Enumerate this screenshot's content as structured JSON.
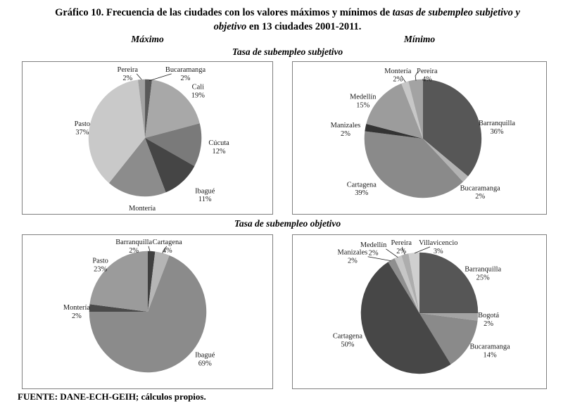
{
  "figure": {
    "title": {
      "line1_regular": "Gráfico 10. Frecuencia de las ciudades con los valores máximos y mínimos de ",
      "line1_italic": "tasas de subempleo subjetivo y",
      "line2_italic": "objetivo",
      "line2_regular": " en 13 ciudades 2001-2011."
    },
    "column_headers": {
      "left": "Máximo",
      "right": "Mínimo"
    },
    "section_titles": {
      "top": "Tasa de subempleo subjetivo",
      "bottom": "Tasa de subempleo objetivo"
    },
    "source": "FUENTE: DANE-ECH-GEIH; cálculos propios."
  },
  "chart_data": [
    {
      "id": "subjetivo-maximo",
      "type": "pie",
      "column": "Máximo",
      "section": "Tasa de subempleo subjetivo",
      "slices": [
        {
          "label": "Bucaramanga",
          "value_pct": 2,
          "color": "#595959"
        },
        {
          "label": "Cali",
          "value_pct": 19,
          "color": "#a8a8a8"
        },
        {
          "label": "Cúcuta",
          "value_pct": 12,
          "color": "#7a7a7a"
        },
        {
          "label": "Ibagué",
          "value_pct": 11,
          "color": "#454545"
        },
        {
          "label": "Montería",
          "value_pct": 17,
          "color": "#8c8c8c"
        },
        {
          "label": "Pasto",
          "value_pct": 37,
          "color": "#c9c9c9"
        },
        {
          "label": "Pereira",
          "value_pct": 2,
          "color": "#a2a2a2"
        }
      ]
    },
    {
      "id": "subjetivo-minimo",
      "type": "pie",
      "column": "Mínimo",
      "section": "Tasa de subempleo subjetivo",
      "slices": [
        {
          "label": "Barranquilla",
          "value_pct": 36,
          "color": "#575757"
        },
        {
          "label": "Bucaramanga",
          "value_pct": 2,
          "color": "#b3b3b3"
        },
        {
          "label": "Cartagena",
          "value_pct": 39,
          "color": "#8a8a8a"
        },
        {
          "label": "Manizales",
          "value_pct": 2,
          "color": "#333333"
        },
        {
          "label": "Medellín",
          "value_pct": 15,
          "color": "#9c9c9c"
        },
        {
          "label": "Montería",
          "value_pct": 2,
          "color": "#c7c7c7"
        },
        {
          "label": "Pereira",
          "value_pct": 4,
          "color": "#a3a3a3"
        }
      ]
    },
    {
      "id": "objetivo-maximo",
      "type": "pie",
      "column": "Máximo",
      "section": "Tasa de subempleo objetivo",
      "slices": [
        {
          "label": "Barranquilla",
          "value_pct": 2,
          "color": "#3f3f3f"
        },
        {
          "label": "Cartagena",
          "value_pct": 4,
          "color": "#b5b5b5"
        },
        {
          "label": "Ibagué",
          "value_pct": 69,
          "color": "#8b8b8b"
        },
        {
          "label": "Montería",
          "value_pct": 2,
          "color": "#4a4a4a"
        },
        {
          "label": "Pasto",
          "value_pct": 23,
          "color": "#9b9b9b"
        }
      ]
    },
    {
      "id": "objetivo-minimo",
      "type": "pie",
      "column": "Mínimo",
      "section": "Tasa de subempleo objetivo",
      "slices": [
        {
          "label": "Barranquilla",
          "value_pct": 25,
          "color": "#565656"
        },
        {
          "label": "Bogotá",
          "value_pct": 2,
          "color": "#a3a3a3"
        },
        {
          "label": "Bucaramanga",
          "value_pct": 14,
          "color": "#8a8a8a"
        },
        {
          "label": "Cartagena",
          "value_pct": 50,
          "color": "#474747"
        },
        {
          "label": "Manizales",
          "value_pct": 2,
          "color": "#8f8f8f"
        },
        {
          "label": "Medellín",
          "value_pct": 2,
          "color": "#c6c6c6"
        },
        {
          "label": "Pereira",
          "value_pct": 2,
          "color": "#adadad"
        },
        {
          "label": "Villavicencio",
          "value_pct": 3,
          "color": "#cfcfcf"
        }
      ]
    }
  ]
}
